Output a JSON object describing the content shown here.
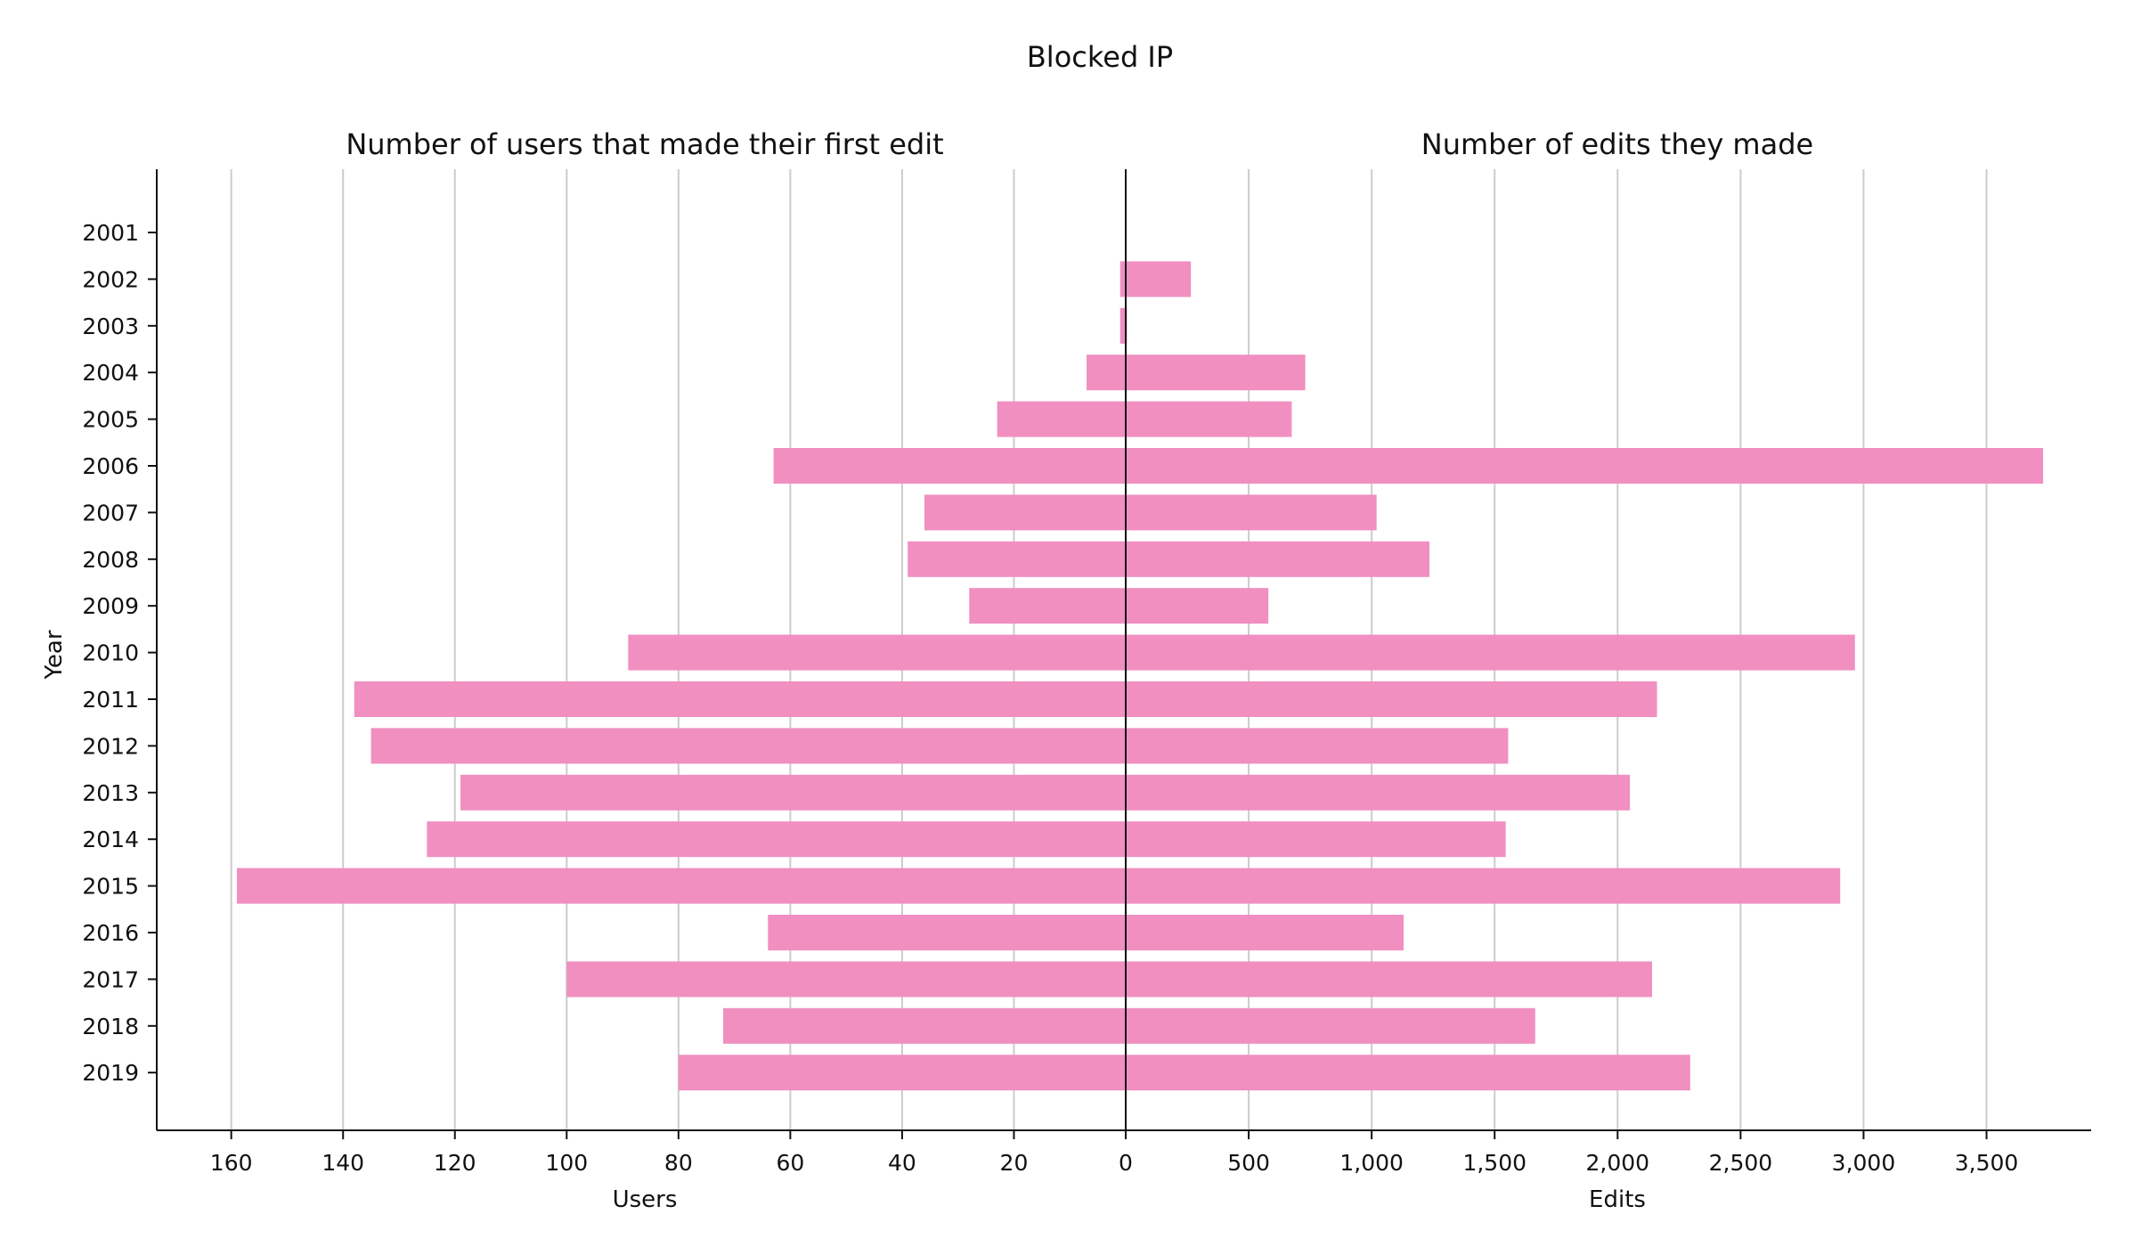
{
  "chart_data": {
    "type": "bar",
    "title": "Blocked IP",
    "ylabel": "Year",
    "color": "#f08fc0",
    "categories": [
      "2001",
      "2002",
      "2003",
      "2004",
      "2005",
      "2006",
      "2007",
      "2008",
      "2009",
      "2010",
      "2011",
      "2012",
      "2013",
      "2014",
      "2015",
      "2016",
      "2017",
      "2018",
      "2019"
    ],
    "panels": [
      {
        "title": "Number of users that made their first edit",
        "xlabel": "Users",
        "direction": "left",
        "xlim": [
          0,
          166
        ],
        "ticks": [
          0,
          20,
          40,
          60,
          80,
          100,
          120,
          140,
          160
        ],
        "tick_labels": [
          "0",
          "20",
          "40",
          "60",
          "80",
          "100",
          "120",
          "140",
          "160"
        ],
        "grid": true,
        "values": [
          0,
          1,
          1,
          7,
          23,
          63,
          36,
          39,
          28,
          89,
          138,
          135,
          119,
          125,
          159,
          64,
          100,
          72,
          80
        ]
      },
      {
        "title": "Number of edits they made",
        "xlabel": "Edits",
        "direction": "right",
        "xlim": [
          0,
          3900
        ],
        "ticks": [
          0,
          500,
          1000,
          1500,
          2000,
          2500,
          3000,
          3500
        ],
        "tick_labels": [
          "0",
          "500",
          "1,000",
          "1,500",
          "2,000",
          "2,500",
          "3,000",
          "3,500"
        ],
        "grid": true,
        "values": [
          0,
          265,
          5,
          730,
          675,
          3730,
          1020,
          1235,
          580,
          2965,
          2160,
          1555,
          2050,
          1545,
          2905,
          1130,
          2140,
          1665,
          2295
        ]
      }
    ]
  }
}
